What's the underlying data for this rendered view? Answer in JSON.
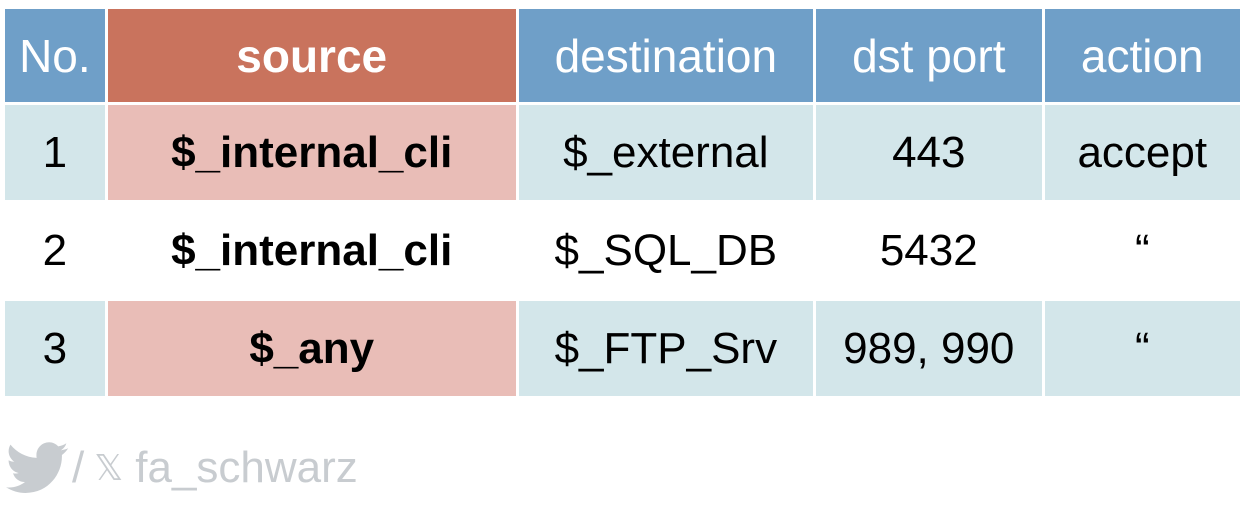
{
  "table": {
    "headers": [
      "No.",
      "source",
      "destination",
      "dst port",
      "action"
    ],
    "rows": [
      {
        "no": "1",
        "source": "$_internal_cli",
        "destination": "$_external",
        "dst_port": "443",
        "action": "accept"
      },
      {
        "no": "2",
        "source": "$_internal_cli",
        "destination": "$_SQL_DB",
        "dst_port": "5432",
        "action": "“"
      },
      {
        "no": "3",
        "source": "$_any",
        "destination": "$_FTP_Srv",
        "dst_port": "989, 990",
        "action": "“"
      }
    ]
  },
  "footer": {
    "separator": "/",
    "x_logo": "𝕏",
    "handle": "fa_schwarz",
    "icons": [
      "twitter-bird-icon",
      "x-logo-icon"
    ]
  },
  "colors": {
    "header_blue": "#6f9fc8",
    "header_source": "#c9735d",
    "row_light_blue": "#d3e6ea",
    "source_cell_pink": "#e9bdb7",
    "footer_gray": "#c8ccd0"
  }
}
